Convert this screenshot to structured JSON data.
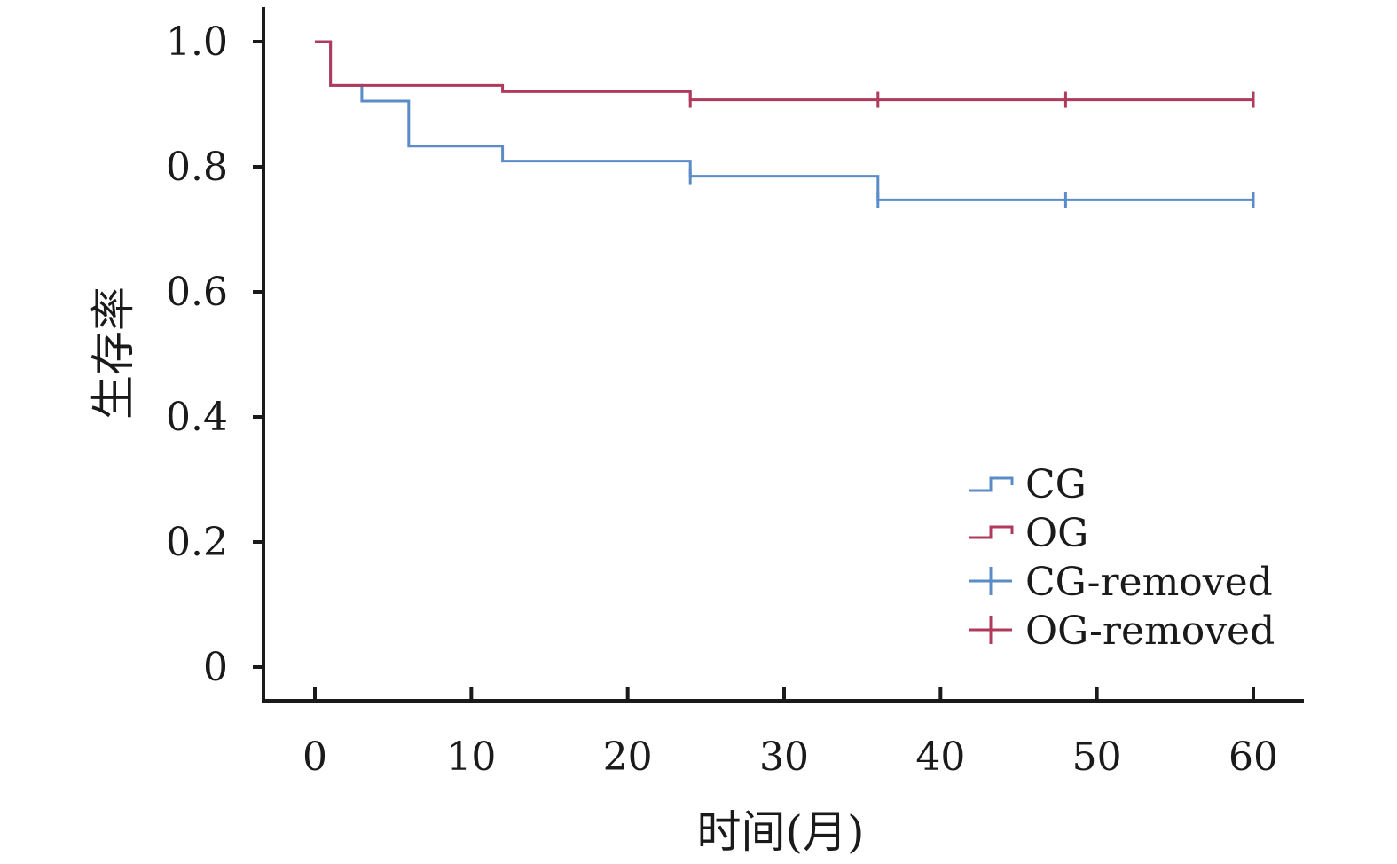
{
  "chart_data": {
    "type": "line",
    "title": "",
    "xlabel": "时间(月)",
    "ylabel": "生存率",
    "xlim": [
      0,
      60
    ],
    "ylim": [
      0,
      1.0
    ],
    "xticks": [
      0,
      10,
      20,
      30,
      40,
      50,
      60
    ],
    "xtick_labels": [
      "0",
      "10",
      "20",
      "30",
      "40",
      "50",
      "60"
    ],
    "yticks": [
      0,
      0.2,
      0.4,
      0.6,
      0.8,
      1.0
    ],
    "ytick_labels": [
      "0",
      "0.2",
      "0.4",
      "0.6",
      "0.8",
      "1.0"
    ],
    "grid": false,
    "legend_position": "bottom-right",
    "series": [
      {
        "name": "CG",
        "color": "#5b8cc8",
        "step": true,
        "x": [
          0,
          1,
          3,
          6,
          12,
          24,
          36,
          60
        ],
        "y": [
          1.0,
          0.93,
          0.905,
          0.833,
          0.809,
          0.785,
          0.747,
          0.747
        ],
        "censored_name": "CG-removed",
        "censored_x": [
          24,
          36,
          48,
          60
        ],
        "censored_y": [
          0.785,
          0.747,
          0.747,
          0.747
        ]
      },
      {
        "name": "OG",
        "color": "#b03a5b",
        "step": true,
        "x": [
          0,
          1,
          12,
          24,
          60
        ],
        "y": [
          1.0,
          0.93,
          0.92,
          0.907,
          0.907
        ],
        "censored_name": "OG-removed",
        "censored_x": [
          24,
          36,
          48,
          60
        ],
        "censored_y": [
          0.907,
          0.907,
          0.907,
          0.907
        ]
      }
    ],
    "legend": [
      {
        "label": "CG",
        "kind": "step",
        "color": "#5b8cc8"
      },
      {
        "label": "OG",
        "kind": "step",
        "color": "#b03a5b"
      },
      {
        "label": "CG-removed",
        "kind": "cross",
        "color": "#5b8cc8"
      },
      {
        "label": "OG-removed",
        "kind": "cross",
        "color": "#b03a5b"
      }
    ]
  }
}
